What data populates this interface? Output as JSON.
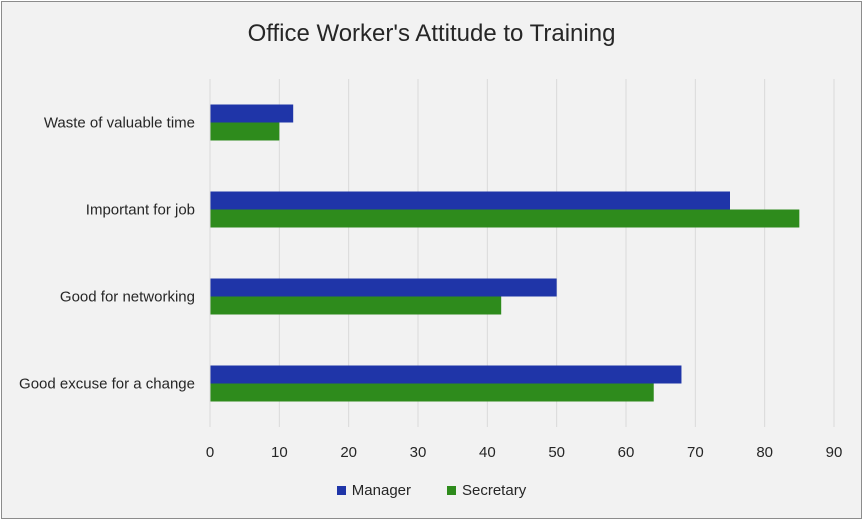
{
  "chart_data": {
    "type": "bar",
    "orientation": "horizontal",
    "title": "Office Worker's Attitude to Training",
    "categories": [
      "Waste of valuable time",
      "Important for job",
      "Good for networking",
      "Good excuse for a change"
    ],
    "series": [
      {
        "name": "Manager",
        "color": "#1f35a8",
        "values": [
          12,
          75,
          50,
          68
        ]
      },
      {
        "name": "Secretary",
        "color": "#2e8b1c",
        "values": [
          10,
          85,
          42,
          64
        ]
      }
    ],
    "xlim": [
      0,
      90
    ],
    "x_ticks": [
      0,
      10,
      20,
      30,
      40,
      50,
      60,
      70,
      80,
      90
    ],
    "grid": true,
    "legend_position": "bottom"
  }
}
